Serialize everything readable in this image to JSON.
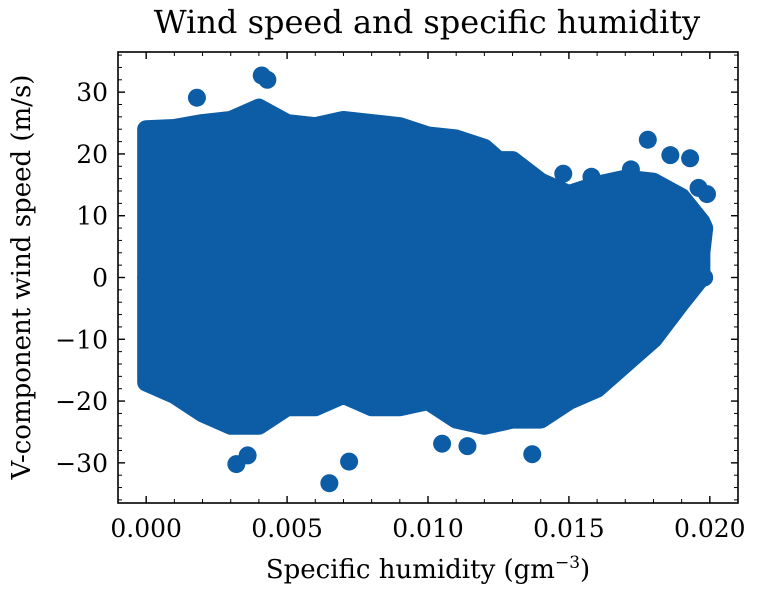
{
  "chart_data": {
    "type": "scatter",
    "title": "Wind speed and specific humidity",
    "xlabel": "Specific humidity (gm",
    "xlabel_sup": "−3",
    "xlabel_close": ")",
    "ylabel": "V-component wind speed (m/s)",
    "xlim": [
      -0.001,
      0.021
    ],
    "ylim": [
      -36.5,
      36.5
    ],
    "xticks": [
      0.0,
      0.005,
      0.01,
      0.015,
      0.02
    ],
    "xtick_labels": [
      "0.000",
      "0.005",
      "0.010",
      "0.015",
      "0.020"
    ],
    "yticks": [
      -30,
      -20,
      -10,
      0,
      10,
      20,
      30
    ],
    "ytick_labels": [
      "−30",
      "−20",
      "−10",
      "0",
      "10",
      "20",
      "30"
    ],
    "grid": false,
    "marker_color": "#0C5DA5",
    "series": [
      {
        "x": [
          0.0,
          0.0002,
          0.0005,
          0.0008,
          0.001,
          0.0012,
          0.0015,
          0.0018,
          0.002,
          0.0022,
          0.0025,
          0.0028,
          0.003,
          0.0032,
          0.0035,
          0.0038,
          0.004,
          0.0041,
          0.0043,
          0.0045,
          0.0047,
          0.005,
          0.0052,
          0.0055,
          0.0058,
          0.006,
          0.0062,
          0.0065,
          0.0068,
          0.007,
          0.0072,
          0.0075,
          0.0078,
          0.008,
          0.0082,
          0.0085,
          0.0088,
          0.009,
          0.0092,
          0.0095,
          0.0098,
          0.01,
          0.0102,
          0.0105,
          0.0108,
          0.011,
          0.0112,
          0.0115,
          0.0118,
          0.012,
          0.0122,
          0.0125,
          0.0128,
          0.013,
          0.0132,
          0.0135,
          0.0137,
          0.014,
          0.0142,
          0.0145,
          0.0148,
          0.015,
          0.0152,
          0.0155,
          0.0158,
          0.016,
          0.0162,
          0.0165,
          0.0168,
          0.017,
          0.0172,
          0.0175,
          0.0178,
          0.018,
          0.0182,
          0.0185,
          0.0188,
          0.019,
          0.0192,
          0.0195,
          0.0198,
          0.0172,
          0.0178,
          0.0186,
          0.0193,
          0.0196,
          0.0199,
          0.0065,
          0.0072,
          0.0105,
          0.0114,
          0.0137,
          0.0032,
          0.0036,
          0.0041,
          0.0043,
          0.0018,
          0.0148,
          0.0158
        ],
        "y": [
          0.0,
          1.5,
          -1.0,
          2.0,
          -2.0,
          3.0,
          1.0,
          -3.0,
          2.5,
          -0.5,
          1.5,
          -2.5,
          3.5,
          0.5,
          -1.5,
          2.0,
          5.0,
          -4.0,
          1.0,
          3.0,
          -2.0,
          4.0,
          0.0,
          -3.5,
          2.5,
          1.0,
          -1.0,
          3.5,
          -2.0,
          0.5,
          4.0,
          -1.5,
          2.0,
          1.0,
          -3.0,
          0.0,
          2.5,
          -1.0,
          3.0,
          0.5,
          -2.0,
          1.5,
          0.0,
          -1.5,
          2.0,
          -0.5,
          1.0,
          -2.5,
          0.5,
          1.5,
          -1.0,
          0.0,
          2.0,
          -2.0,
          0.5,
          1.0,
          -1.5,
          0.0,
          2.0,
          -1.0,
          0.5,
          1.5,
          -2.0,
          0.0,
          1.0,
          -1.0,
          2.0,
          -0.5,
          0.0,
          1.5,
          -1.0,
          0.5,
          0.0,
          1.0,
          -0.5,
          0.5,
          1.0,
          0.0,
          0.5,
          -0.5,
          0.0,
          17.5,
          22.3,
          19.8,
          19.3,
          14.5,
          13.5,
          -33.3,
          -29.8,
          -26.9,
          -27.3,
          -28.6,
          -30.2,
          -28.8,
          32.7,
          32.0,
          29.1,
          16.8,
          16.3
        ]
      }
    ],
    "cloud_upper": [
      [
        0.0,
        24
      ],
      [
        0.001,
        24.2
      ],
      [
        0.002,
        25
      ],
      [
        0.003,
        25.5
      ],
      [
        0.004,
        27.5
      ],
      [
        0.005,
        25
      ],
      [
        0.006,
        24.5
      ],
      [
        0.007,
        25.5
      ],
      [
        0.008,
        25
      ],
      [
        0.009,
        24.5
      ],
      [
        0.01,
        23
      ],
      [
        0.011,
        22.5
      ],
      [
        0.012,
        21
      ],
      [
        0.0125,
        19
      ],
      [
        0.013,
        19
      ],
      [
        0.014,
        15.5
      ],
      [
        0.015,
        13.5
      ],
      [
        0.016,
        15
      ],
      [
        0.017,
        16
      ],
      [
        0.018,
        15.5
      ],
      [
        0.019,
        13
      ],
      [
        0.0197,
        9
      ],
      [
        0.0198,
        8
      ],
      [
        0.0197,
        4
      ]
    ],
    "cloud_lower": [
      [
        0.0,
        -17
      ],
      [
        0.001,
        -19
      ],
      [
        0.002,
        -22
      ],
      [
        0.003,
        -24
      ],
      [
        0.004,
        -24
      ],
      [
        0.005,
        -21
      ],
      [
        0.006,
        -21
      ],
      [
        0.007,
        -19
      ],
      [
        0.008,
        -21
      ],
      [
        0.009,
        -21
      ],
      [
        0.01,
        -20
      ],
      [
        0.011,
        -23
      ],
      [
        0.012,
        -24
      ],
      [
        0.013,
        -23
      ],
      [
        0.014,
        -23
      ],
      [
        0.015,
        -20
      ],
      [
        0.016,
        -18
      ],
      [
        0.017,
        -14
      ],
      [
        0.018,
        -10
      ],
      [
        0.019,
        -4
      ],
      [
        0.0197,
        0
      ]
    ]
  }
}
